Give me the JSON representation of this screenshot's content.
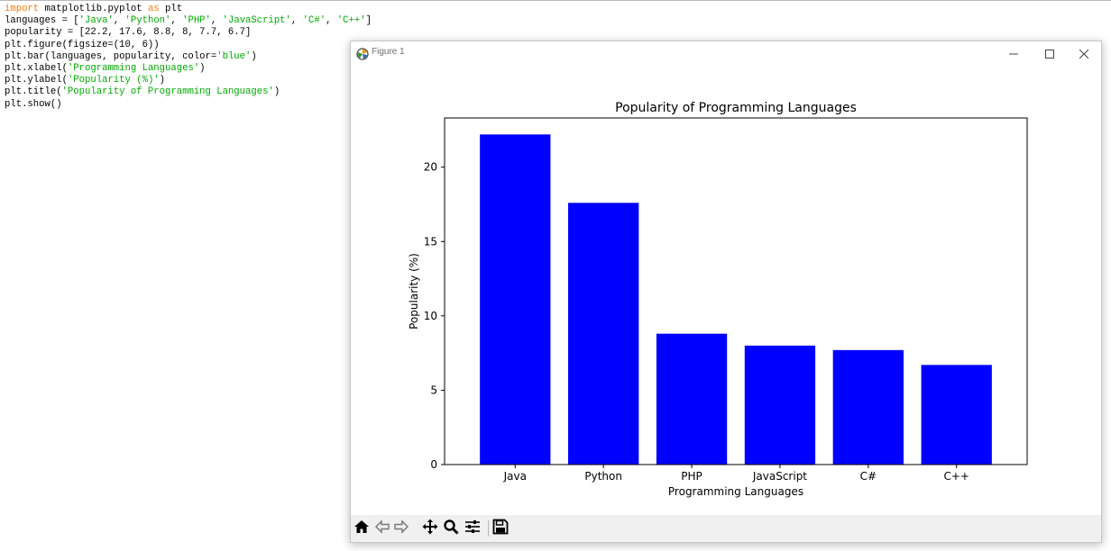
{
  "editor": {
    "lines": [
      [
        {
          "t": "import",
          "c": "kw"
        },
        {
          "t": " matplotlib.pyplot ",
          "c": "default"
        },
        {
          "t": "as",
          "c": "kw"
        },
        {
          "t": " plt",
          "c": "default"
        }
      ],
      [
        {
          "t": "languages = [",
          "c": "default"
        },
        {
          "t": "'Java'",
          "c": "str"
        },
        {
          "t": ", ",
          "c": "default"
        },
        {
          "t": "'Python'",
          "c": "str"
        },
        {
          "t": ", ",
          "c": "default"
        },
        {
          "t": "'PHP'",
          "c": "str"
        },
        {
          "t": ", ",
          "c": "default"
        },
        {
          "t": "'JavaScript'",
          "c": "str"
        },
        {
          "t": ", ",
          "c": "default"
        },
        {
          "t": "'C#'",
          "c": "str"
        },
        {
          "t": ", ",
          "c": "default"
        },
        {
          "t": "'C++'",
          "c": "str"
        },
        {
          "t": "]",
          "c": "default"
        }
      ],
      [
        {
          "t": "popularity = [22.2, 17.6, 8.8, 8, 7.7, 6.7]",
          "c": "default"
        }
      ],
      [
        {
          "t": "plt.figure(figsize=(10, 6))",
          "c": "default"
        }
      ],
      [
        {
          "t": "plt.bar(languages, popularity, color=",
          "c": "default"
        },
        {
          "t": "'blue'",
          "c": "str"
        },
        {
          "t": ")",
          "c": "default"
        }
      ],
      [
        {
          "t": "plt.xlabel(",
          "c": "default"
        },
        {
          "t": "'Programming Languages'",
          "c": "str"
        },
        {
          "t": ")",
          "c": "default"
        }
      ],
      [
        {
          "t": "plt.ylabel(",
          "c": "default"
        },
        {
          "t": "'Popularity (%)'",
          "c": "str"
        },
        {
          "t": ")",
          "c": "default"
        }
      ],
      [
        {
          "t": "plt.title(",
          "c": "default"
        },
        {
          "t": "'Popularity of Programming Languages'",
          "c": "str"
        },
        {
          "t": ")",
          "c": "default"
        }
      ],
      [
        {
          "t": "plt.show()",
          "c": "default"
        }
      ]
    ]
  },
  "window": {
    "title": "Figure 1",
    "controls": {
      "minimize": "minimize-icon",
      "maximize": "maximize-icon",
      "close": "close-icon"
    }
  },
  "toolbar": {
    "buttons": [
      "home-icon",
      "back-arrow-icon",
      "forward-arrow-icon",
      "pan-icon",
      "zoom-icon",
      "configure-subplots-icon",
      "save-icon"
    ]
  },
  "colors": {
    "keyword": "#ff7700",
    "string": "#00aa00",
    "bar": "#0000ff"
  },
  "chart_data": {
    "type": "bar",
    "title": "Popularity of Programming Languages",
    "xlabel": "Programming Languages",
    "ylabel": "Popularity (%)",
    "categories": [
      "Java",
      "Python",
      "PHP",
      "JavaScript",
      "C#",
      "C++"
    ],
    "values": [
      22.2,
      17.6,
      8.8,
      8,
      7.7,
      6.7
    ],
    "ylim": [
      0,
      23.31
    ],
    "yticks": [
      0,
      5,
      10,
      15,
      20
    ],
    "bar_color": "#0000ff",
    "grid": false,
    "legend": "none"
  }
}
